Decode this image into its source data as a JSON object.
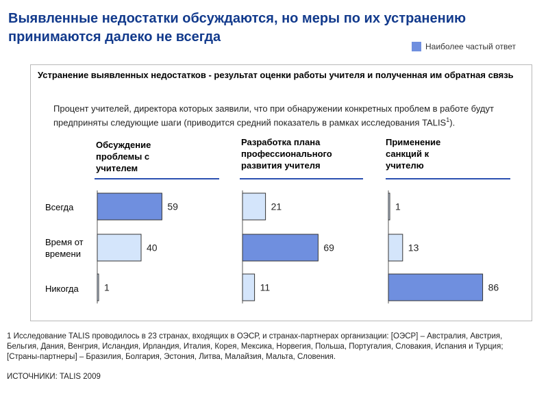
{
  "header": {
    "title": "Выявленные недостатки обсуждаются, но меры по их устранению принимаются далеко не всегда"
  },
  "legend": {
    "label": "Наиболее частый ответ",
    "color": "#6f8fdf"
  },
  "panel": {
    "title": "Устранение выявленных недостатков - результат оценки работы учителя и полученная им обратная связь",
    "subtitle_text": "Процент учителей, директора которых заявили, что при обнаружении конкретных проблем в работе будут предприняты следующие шаги (приводится средний показатель в рамках исследования TALIS",
    "subtitle_sup": "1",
    "subtitle_end": ")."
  },
  "chart_data": {
    "type": "bar",
    "orientation": "horizontal",
    "categories": [
      "Всегда",
      "Время от времени",
      "Никогда"
    ],
    "category_labels": [
      [
        "Всегда"
      ],
      [
        "Время от",
        "времени"
      ],
      [
        "Никогда"
      ]
    ],
    "xlim": [
      0,
      100
    ],
    "highlight_color": "#6f8fdf",
    "normal_color": "#d4e5fb",
    "series": [
      {
        "name": "Обсуждение проблемы с учителем",
        "header_lines": [
          "Обсуждение",
          "проблемы с",
          "учителем"
        ],
        "values": [
          59,
          40,
          1
        ],
        "highlight_index": 0
      },
      {
        "name": "Разработка плана профессионального развития учителя",
        "header_lines": [
          "Разработка плана",
          "профессионального",
          "развития учителя"
        ],
        "values": [
          21,
          69,
          11
        ],
        "highlight_index": 1
      },
      {
        "name": "Применение санкций к учителю",
        "header_lines": [
          "Применение",
          "санкций к",
          "учителю"
        ],
        "values": [
          1,
          13,
          86
        ],
        "highlight_index": 2
      }
    ]
  },
  "footnote": {
    "text": "1 Исследование TALIS проводилось в 23 странах, входящих в ОЭСР, и странах-партнерах организации: [ОЭСР] – Австралия, Австрия, Бельгия, Дания, Венгрия, Исландия, Ирландия, Италия, Корея, Мексика, Норвегия, Польша, Португалия, Словакия, Испания и Турция; [Страны-партнеры] – Бразилия, Болгария, Эстония, Литва, Малайзия, Мальта, Словения."
  },
  "sources": {
    "text": "ИСТОЧНИКИ: TALIS 2009"
  }
}
